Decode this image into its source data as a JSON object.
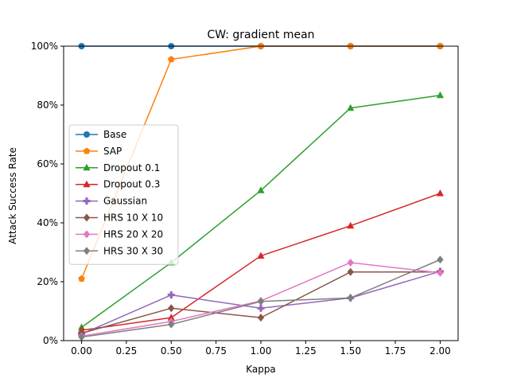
{
  "chart_data": {
    "type": "line",
    "title": "CW: gradient mean",
    "xlabel": "Kappa",
    "ylabel": "Attack Success Rate",
    "x": [
      0.0,
      0.5,
      1.0,
      1.5,
      2.0
    ],
    "xlim": [
      -0.1,
      2.1
    ],
    "ylim": [
      0,
      1.0
    ],
    "xticks": [
      {
        "value": 0.0,
        "label": "0.00"
      },
      {
        "value": 0.25,
        "label": "0.25"
      },
      {
        "value": 0.5,
        "label": "0.50"
      },
      {
        "value": 0.75,
        "label": "0.75"
      },
      {
        "value": 1.0,
        "label": "1.00"
      },
      {
        "value": 1.25,
        "label": "1.25"
      },
      {
        "value": 1.5,
        "label": "1.50"
      },
      {
        "value": 1.75,
        "label": "1.75"
      },
      {
        "value": 2.0,
        "label": "2.00"
      }
    ],
    "yticks": [
      {
        "value": 0.0,
        "label": "0%"
      },
      {
        "value": 0.2,
        "label": "20%"
      },
      {
        "value": 0.4,
        "label": "40%"
      },
      {
        "value": 0.6,
        "label": "60%"
      },
      {
        "value": 0.8,
        "label": "80%"
      },
      {
        "value": 1.0,
        "label": "100%"
      }
    ],
    "grid": false,
    "legend_position": "center-left",
    "series": [
      {
        "name": "Base",
        "color": "#1f77b4",
        "marker": "circle",
        "values": [
          1.0,
          1.0,
          1.0,
          1.0,
          1.0
        ]
      },
      {
        "name": "SAP",
        "color": "#ff7f0e",
        "marker": "pentagon",
        "values": [
          0.21,
          0.955,
          1.0,
          1.0,
          1.0
        ]
      },
      {
        "name": "Dropout 0.1",
        "color": "#2ca02c",
        "marker": "triangle",
        "values": [
          0.045,
          0.265,
          0.51,
          0.79,
          0.833
        ]
      },
      {
        "name": "Dropout 0.3",
        "color": "#d62728",
        "marker": "triangle",
        "values": [
          0.035,
          0.078,
          0.288,
          0.39,
          0.5
        ]
      },
      {
        "name": "Gaussian",
        "color": "#9467bd",
        "marker": "plus",
        "values": [
          0.022,
          0.155,
          0.11,
          0.145,
          0.235
        ]
      },
      {
        "name": "HRS 10 X 10",
        "color": "#8c564b",
        "marker": "diamond",
        "values": [
          0.025,
          0.11,
          0.078,
          0.233,
          0.233
        ]
      },
      {
        "name": "HRS 20 X 20",
        "color": "#e377c2",
        "marker": "diamond",
        "values": [
          0.015,
          0.065,
          0.135,
          0.265,
          0.23
        ]
      },
      {
        "name": "HRS 30 X 30",
        "color": "#7f7f7f",
        "marker": "diamond",
        "values": [
          0.012,
          0.055,
          0.133,
          0.145,
          0.275
        ]
      }
    ]
  }
}
